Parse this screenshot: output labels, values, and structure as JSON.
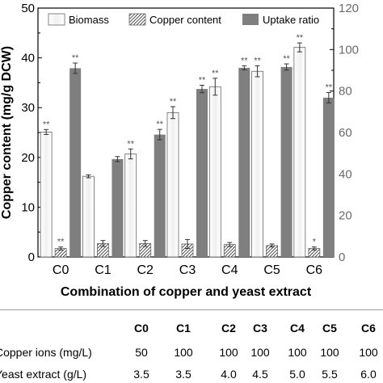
{
  "chart_data": {
    "type": "bar",
    "xlabel": "Combination of copper and yeast extract",
    "ylabel_left": "Copper content (mg/g DCW)",
    "ylabel_right": "",
    "categories": [
      "C0",
      "C1",
      "C2",
      "C3",
      "C4",
      "C5",
      "C6"
    ],
    "ylim_left": [
      0,
      50
    ],
    "ylim_right": [
      0,
      120
    ],
    "yticks_left": [
      "0",
      "10",
      "20",
      "30",
      "40",
      "50"
    ],
    "yticks_right": [
      "0",
      "20",
      "40",
      "60",
      "80",
      "100",
      "120"
    ],
    "legend_position": "top",
    "series": [
      {
        "name": "Biomass",
        "axis": "left",
        "pattern": "white",
        "values": [
          25.1,
          16.2,
          20.7,
          29.0,
          34.2,
          37.3,
          42.1
        ],
        "errors": [
          0.5,
          0.3,
          1.0,
          1.2,
          1.7,
          1.1,
          0.9
        ],
        "marks": [
          "**",
          "",
          "**",
          "**",
          "**",
          "**",
          "**"
        ]
      },
      {
        "name": "Copper content",
        "axis": "left",
        "pattern": "hatched",
        "values": [
          1.7,
          2.7,
          2.7,
          2.6,
          2.5,
          2.3,
          1.7
        ],
        "errors": [
          0.3,
          0.6,
          0.6,
          0.9,
          0.4,
          0.3,
          0.3
        ],
        "marks": [
          "**",
          "",
          "",
          "",
          "",
          "",
          "*"
        ]
      },
      {
        "name": "Uptake ratio",
        "axis": "right",
        "pattern": "gray",
        "color": "#7f7f7f",
        "values": [
          91.0,
          47.2,
          59.0,
          81.0,
          91.2,
          91.6,
          76.8
        ],
        "errors": [
          2.5,
          1.2,
          2.5,
          1.8,
          1.0,
          1.5,
          2.5
        ],
        "marks": [
          "**",
          "",
          "**",
          "**",
          "**",
          "**",
          "**"
        ]
      }
    ]
  },
  "table": {
    "headers": [
      "C0",
      "C1",
      "C2",
      "C3",
      "C4",
      "C5",
      "C6"
    ],
    "rows": [
      {
        "label": "Copper ions (mg/L)",
        "values": [
          "50",
          "100",
          "100",
          "100",
          "100",
          "100",
          "100"
        ]
      },
      {
        "label": "Yeast extract (g/L)",
        "values": [
          "3.5",
          "3.5",
          "4.0",
          "4.5",
          "5.0",
          "5.5",
          "6.0"
        ]
      }
    ]
  }
}
